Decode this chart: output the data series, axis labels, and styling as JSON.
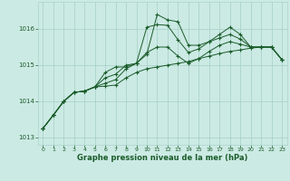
{
  "background_color": "#cceae4",
  "grid_color": "#aad4cc",
  "line_color": "#1a5c2a",
  "title": "Graphe pression niveau de la mer (hPa)",
  "ylim": [
    1012.8,
    1016.75
  ],
  "xlim": [
    -0.5,
    23.5
  ],
  "yticks": [
    1013,
    1014,
    1015,
    1016
  ],
  "xticks": [
    0,
    1,
    2,
    3,
    4,
    5,
    6,
    7,
    8,
    9,
    10,
    11,
    12,
    13,
    14,
    15,
    16,
    17,
    18,
    19,
    20,
    21,
    22,
    23
  ],
  "series": [
    [
      1013.25,
      1013.62,
      1014.0,
      1014.25,
      1014.28,
      1014.4,
      1014.8,
      1014.95,
      1014.95,
      1015.05,
      1015.3,
      1016.4,
      1016.25,
      1016.2,
      1015.55,
      1015.55,
      1015.65,
      1015.85,
      1016.05,
      1015.85,
      1015.5,
      1015.5,
      1015.5,
      1015.15
    ],
    [
      1013.25,
      1013.62,
      1014.0,
      1014.25,
      1014.28,
      1014.4,
      1014.65,
      1014.75,
      1015.0,
      1015.05,
      1016.05,
      1016.12,
      1016.1,
      1015.7,
      1015.35,
      1015.45,
      1015.65,
      1015.75,
      1015.85,
      1015.72,
      1015.5,
      1015.5,
      1015.5,
      1015.15
    ],
    [
      1013.25,
      1013.62,
      1014.0,
      1014.25,
      1014.28,
      1014.4,
      1014.5,
      1014.6,
      1014.9,
      1015.05,
      1015.35,
      1015.5,
      1015.5,
      1015.25,
      1015.05,
      1015.18,
      1015.38,
      1015.55,
      1015.65,
      1015.58,
      1015.5,
      1015.5,
      1015.5,
      1015.15
    ],
    [
      1013.25,
      1013.62,
      1014.0,
      1014.25,
      1014.28,
      1014.4,
      1014.42,
      1014.45,
      1014.65,
      1014.8,
      1014.9,
      1014.95,
      1015.0,
      1015.05,
      1015.1,
      1015.18,
      1015.25,
      1015.32,
      1015.38,
      1015.42,
      1015.47,
      1015.5,
      1015.5,
      1015.15
    ]
  ]
}
